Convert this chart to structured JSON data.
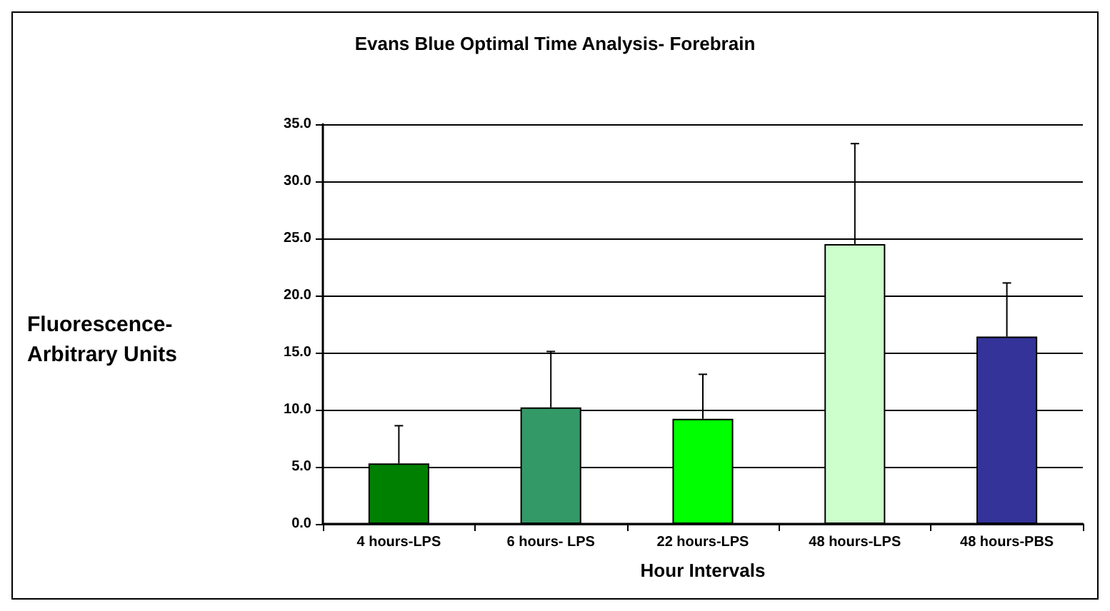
{
  "chart_data": {
    "type": "bar",
    "title": "Evans Blue Optimal Time Analysis- Forebrain",
    "xlabel": "Hour Intervals",
    "ylabel": "Fluorescence- Arbitrary Units",
    "categories": [
      "4 hours-LPS",
      "6 hours- LPS",
      "22 hours-LPS",
      "48 hours-LPS",
      "48 hours-PBS"
    ],
    "values": [
      5.3,
      10.2,
      9.2,
      24.5,
      16.4
    ],
    "colors": [
      "#008000",
      "#339966",
      "#00ff00",
      "#ccffcc",
      "#333399"
    ],
    "errors": [
      [
        5.3,
        8.6
      ],
      [
        10.2,
        15.1
      ],
      [
        9.2,
        13.1
      ],
      [
        24.5,
        33.3
      ],
      [
        16.4,
        21.1
      ]
    ],
    "ylim": [
      0,
      35
    ],
    "yticks": [
      {
        "value": 0,
        "label": "0.0"
      },
      {
        "value": 5,
        "label": "5.0"
      },
      {
        "value": 10,
        "label": "10.0"
      },
      {
        "value": 15,
        "label": "15.0"
      },
      {
        "value": 20,
        "label": "20.0"
      },
      {
        "value": 25,
        "label": "25.0"
      },
      {
        "value": 30,
        "label": "30.0"
      },
      {
        "value": 35,
        "label": "35.0"
      }
    ],
    "grid": "y"
  }
}
